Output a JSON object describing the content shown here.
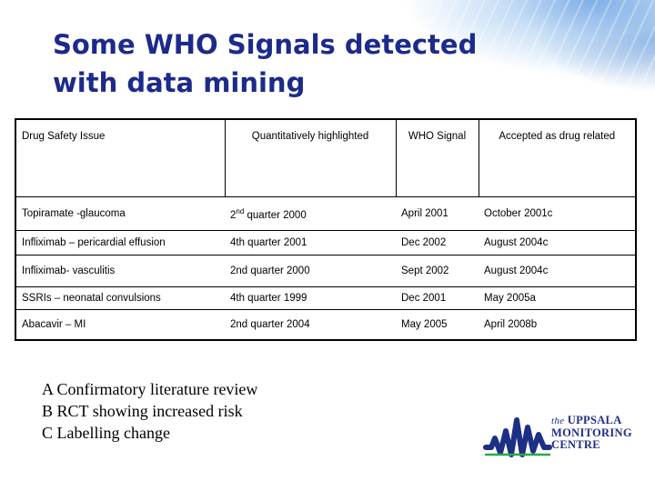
{
  "slide": {
    "title_lines": [
      "Some WHO Signals detected",
      "with data mining"
    ]
  },
  "table": {
    "headers": [
      "Drug Safety Issue",
      "Quantitatively highlighted",
      "WHO Signal",
      "Accepted as drug related"
    ],
    "rows": [
      {
        "issue": "Topiramate -glaucoma",
        "q_pre": "2",
        "q_sup": "nd",
        "q_post": " quarter 2000",
        "signal": "April 2001",
        "accepted": "October 2001c"
      },
      {
        "issue": "Infliximab – pericardial effusion",
        "quarter": "4th quarter 2001",
        "signal": "Dec 2002",
        "accepted": "August 2004c"
      },
      {
        "issue": "Infliximab- vasculitis",
        "quarter": "2nd quarter 2000",
        "signal": "Sept 2002",
        "accepted": "August 2004c"
      },
      {
        "issue": "SSRIs – neonatal convulsions",
        "quarter": "4th quarter 1999",
        "signal": "Dec 2001",
        "accepted": "May 2005a"
      },
      {
        "issue": "Abacavir – MI",
        "quarter": "2nd quarter 2004",
        "signal": "May 2005",
        "accepted": "April 2008b"
      }
    ]
  },
  "legend": [
    "A Confirmatory literature review",
    "B RCT showing increased risk",
    "C Labelling change"
  ],
  "logo": {
    "line1_the": "the",
    "line1_rest": "UPPSALA",
    "line2": "MONITORING",
    "line3": "CENTRE",
    "color": "#1e2f86",
    "accent": "#2aa84a"
  }
}
